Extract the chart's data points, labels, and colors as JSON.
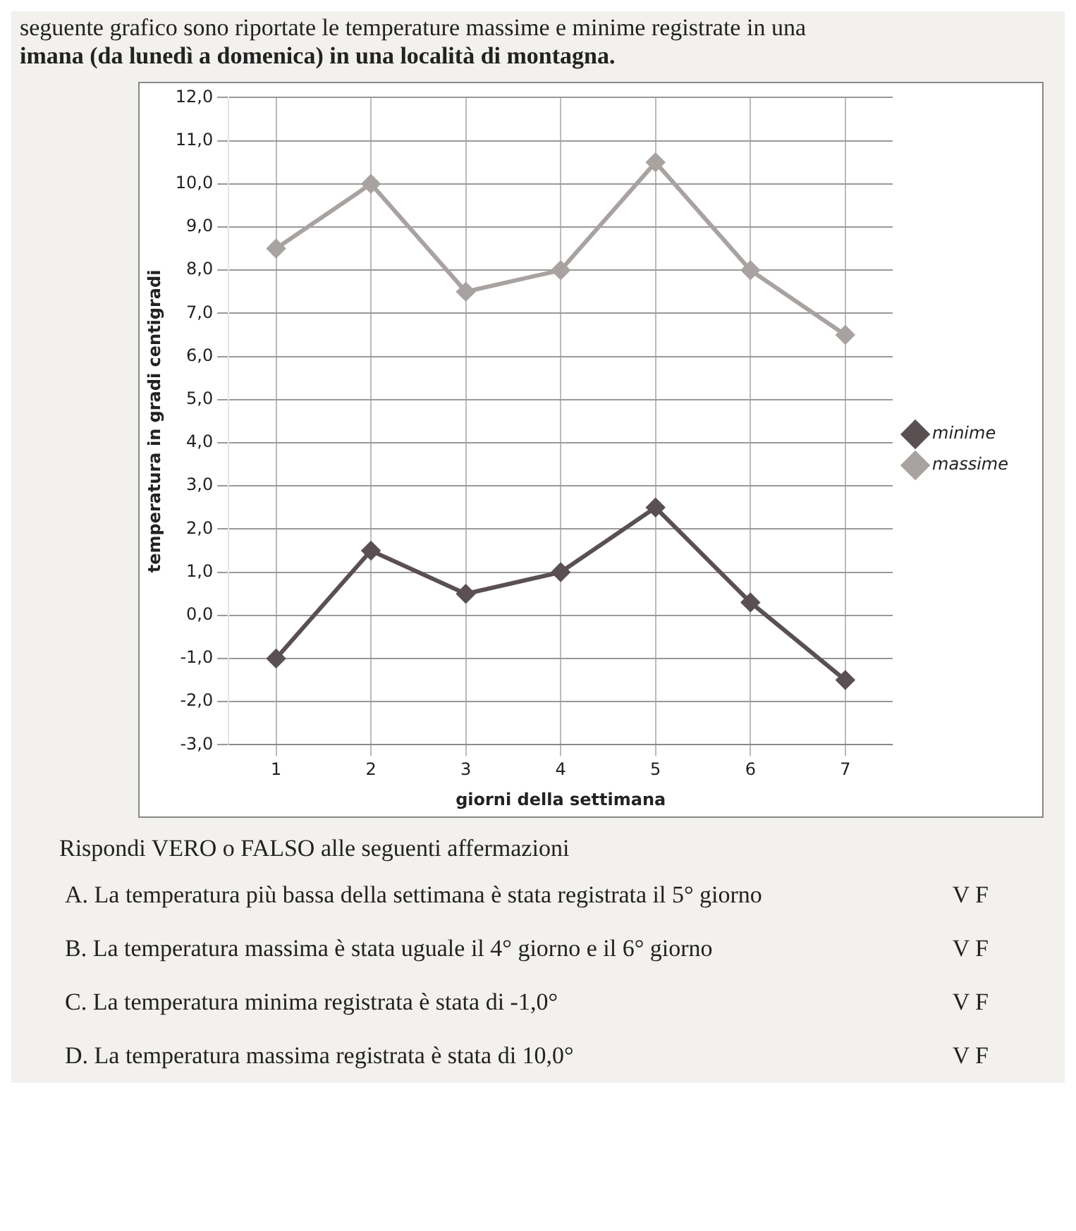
{
  "chart_data": {
    "type": "line",
    "title": "seguente grafico sono riportate le temperature massime e minime registrate in una",
    "subtitle": "imana (da lunedì a domenica) in una località di montagna.",
    "xlabel": "giorni della settimana",
    "ylabel": "temperatura in gradi centigradi",
    "categories": [
      "1",
      "2",
      "3",
      "4",
      "5",
      "6",
      "7"
    ],
    "series": [
      {
        "name": "minime",
        "color": "#5a5052",
        "values": [
          -1.0,
          1.5,
          0.5,
          1.0,
          2.5,
          0.3,
          -1.5
        ]
      },
      {
        "name": "massime",
        "color": "#a8a2a0",
        "values": [
          8.5,
          10.0,
          7.5,
          8.0,
          10.5,
          8.0,
          6.5
        ]
      }
    ],
    "ylim": [
      -3,
      12
    ],
    "yticks": [
      {
        "value": -3,
        "label": "-3,0"
      },
      {
        "value": -2,
        "label": "-2,0"
      },
      {
        "value": -1,
        "label": "-1,0"
      },
      {
        "value": 0,
        "label": "0,0"
      },
      {
        "value": 1,
        "label": "1,0"
      },
      {
        "value": 2,
        "label": "2,0"
      },
      {
        "value": 3,
        "label": "3,0"
      },
      {
        "value": 4,
        "label": "4,0"
      },
      {
        "value": 5,
        "label": "5,0"
      },
      {
        "value": 6,
        "label": "6,0"
      },
      {
        "value": 7,
        "label": "7,0"
      },
      {
        "value": 8,
        "label": "8,0"
      },
      {
        "value": 9,
        "label": "9,0"
      },
      {
        "value": 10,
        "label": "10,0"
      },
      {
        "value": 11,
        "label": "11,0"
      },
      {
        "value": 12,
        "label": "12,0"
      }
    ],
    "grid": true,
    "legend": "right",
    "marker": "diamond",
    "line_style": "solid",
    "annotations": [
      "Rispondi VERO o FALSO alle seguenti affermazioni",
      "A. La temperatura più bassa della settimana è stata registrata il 5° giorno",
      "V F",
      "B. La temperatura massima è stata uguale il 4° giorno e il 6° giorno",
      "V F",
      "C. La temperatura minima registrata è stata di -1,0°",
      "V F",
      "D. La temperatura massima registrata è stata di 10,0°",
      "V F"
    ]
  }
}
